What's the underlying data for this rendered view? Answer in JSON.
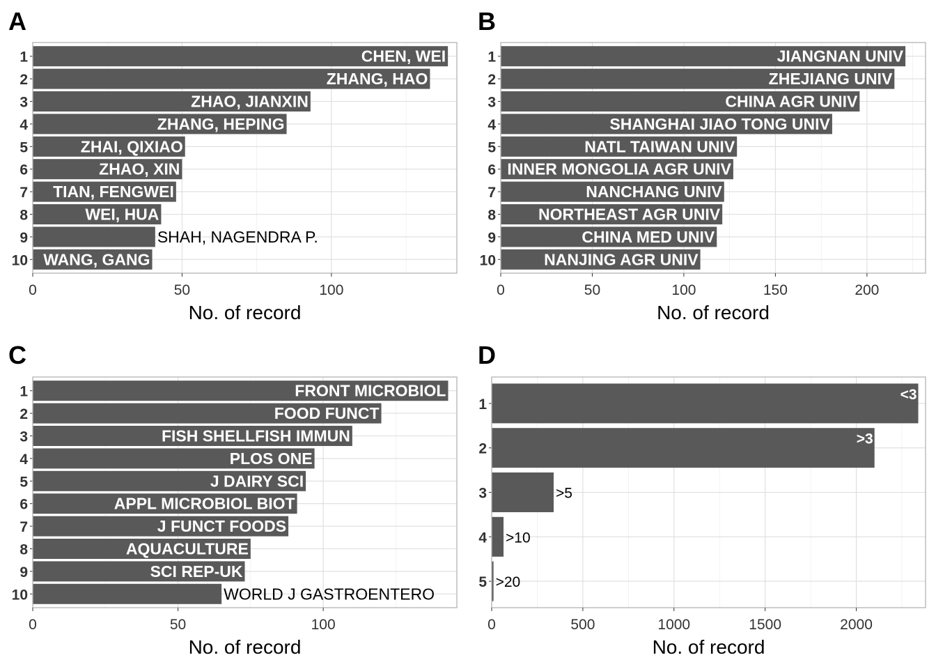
{
  "chart_data": [
    {
      "panel": "A",
      "type": "bar",
      "orientation": "horizontal",
      "categories": [
        "1",
        "2",
        "3",
        "4",
        "5",
        "6",
        "7",
        "8",
        "9",
        "10"
      ],
      "labels": [
        "CHEN, WEI",
        "ZHANG, HAO",
        "ZHAO, JIANXIN",
        "ZHANG, HEPING",
        "ZHAI, QIXIAO",
        "ZHAO, XIN",
        "TIAN, FENGWEI",
        "WEI, HUA",
        "SHAH, NAGENDRA P.",
        "WANG, GANG"
      ],
      "values": [
        139,
        133,
        93,
        85,
        51,
        50,
        48,
        43,
        41,
        40
      ],
      "xlabel": "No. of record",
      "xticks": [
        0,
        50,
        100
      ],
      "xlim": [
        0,
        142
      ],
      "grid": true
    },
    {
      "panel": "B",
      "type": "bar",
      "orientation": "horizontal",
      "categories": [
        "1",
        "2",
        "3",
        "4",
        "5",
        "6",
        "7",
        "8",
        "9",
        "10"
      ],
      "labels": [
        "JIANGNAN UNIV",
        "ZHEJIANG UNIV",
        "CHINA AGR UNIV",
        "SHANGHAI JIAO TONG UNIV",
        "NATL TAIWAN UNIV",
        "INNER MONGOLIA AGR UNIV",
        "NANCHANG UNIV",
        "NORTHEAST AGR UNIV",
        "CHINA MED UNIV",
        "NANJING AGR UNIV"
      ],
      "values": [
        221,
        215,
        196,
        181,
        129,
        127,
        122,
        121,
        118,
        109
      ],
      "xlabel": "No. of record",
      "xticks": [
        0,
        50,
        100,
        150,
        200
      ],
      "xlim": [
        0,
        232
      ],
      "grid": true
    },
    {
      "panel": "C",
      "type": "bar",
      "orientation": "horizontal",
      "categories": [
        "1",
        "2",
        "3",
        "4",
        "5",
        "6",
        "7",
        "8",
        "9",
        "10"
      ],
      "labels": [
        "FRONT MICROBIOL",
        "FOOD FUNCT",
        "FISH SHELLFISH IMMUN",
        "PLOS ONE",
        "J DAIRY SCI",
        "APPL MICROBIOL BIOT",
        "J FUNCT FOODS",
        "AQUACULTURE",
        "SCI REP-UK",
        "WORLD J GASTROENTERO"
      ],
      "values": [
        143,
        120,
        110,
        97,
        94,
        91,
        88,
        75,
        73,
        65
      ],
      "xlabel": "No. of record",
      "xticks": [
        0,
        50,
        100
      ],
      "xlim": [
        0,
        146
      ],
      "grid": true
    },
    {
      "panel": "D",
      "type": "bar",
      "orientation": "horizontal",
      "categories": [
        "1",
        "2",
        "3",
        "4",
        "5"
      ],
      "labels": [
        "<3",
        ">3",
        ">5",
        ">10",
        ">20"
      ],
      "values": [
        2340,
        2100,
        340,
        65,
        10
      ],
      "xlabel": "No. of record",
      "xticks": [
        0,
        500,
        1000,
        1500,
        2000
      ],
      "xlim": [
        0,
        2380
      ],
      "grid": true
    }
  ]
}
